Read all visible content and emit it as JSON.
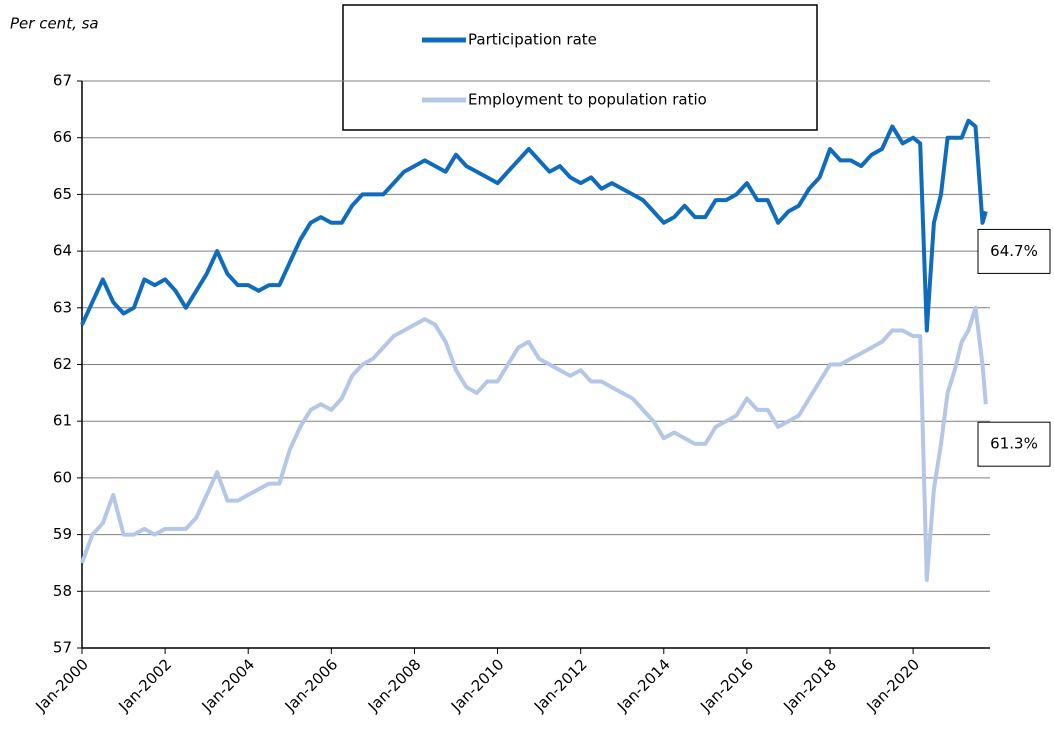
{
  "chart_data": {
    "type": "line",
    "y_label": "Per cent, sa",
    "x": [
      2000,
      2000.25,
      2000.5,
      2000.75,
      2001,
      2001.25,
      2001.5,
      2001.75,
      2002,
      2002.25,
      2002.5,
      2002.75,
      2003,
      2003.25,
      2003.5,
      2003.75,
      2004,
      2004.25,
      2004.5,
      2004.75,
      2005,
      2005.25,
      2005.5,
      2005.75,
      2006,
      2006.25,
      2006.5,
      2006.75,
      2007,
      2007.25,
      2007.5,
      2007.75,
      2008,
      2008.25,
      2008.5,
      2008.75,
      2009,
      2009.25,
      2009.5,
      2009.75,
      2010,
      2010.25,
      2010.5,
      2010.75,
      2011,
      2011.25,
      2011.5,
      2011.75,
      2012,
      2012.25,
      2012.5,
      2012.75,
      2013,
      2013.25,
      2013.5,
      2013.75,
      2014,
      2014.25,
      2014.5,
      2014.75,
      2015,
      2015.25,
      2015.5,
      2015.75,
      2016,
      2016.25,
      2016.5,
      2016.75,
      2017,
      2017.25,
      2017.5,
      2017.75,
      2018,
      2018.25,
      2018.5,
      2018.75,
      2019,
      2019.25,
      2019.5,
      2019.75,
      2020,
      2020.17,
      2020.33,
      2020.5,
      2020.67,
      2020.83,
      2021,
      2021.17,
      2021.33,
      2021.5,
      2021.67,
      2021.75
    ],
    "series": [
      {
        "name": "Participation rate",
        "color": "#0f6cbd",
        "values": [
          62.7,
          63.1,
          63.5,
          63.1,
          62.9,
          63.0,
          63.5,
          63.4,
          63.5,
          63.3,
          63.0,
          63.3,
          63.6,
          64.0,
          63.6,
          63.4,
          63.4,
          63.3,
          63.4,
          63.4,
          63.8,
          64.2,
          64.5,
          64.6,
          64.5,
          64.5,
          64.8,
          65.0,
          65.0,
          65.0,
          65.2,
          65.4,
          65.5,
          65.6,
          65.5,
          65.4,
          65.7,
          65.5,
          65.4,
          65.3,
          65.2,
          65.4,
          65.6,
          65.8,
          65.6,
          65.4,
          65.5,
          65.3,
          65.2,
          65.3,
          65.1,
          65.2,
          65.1,
          65.0,
          64.9,
          64.7,
          64.5,
          64.6,
          64.8,
          64.6,
          64.6,
          64.9,
          64.9,
          65.0,
          65.2,
          64.9,
          64.9,
          64.5,
          64.7,
          64.8,
          65.1,
          65.3,
          65.8,
          65.6,
          65.6,
          65.5,
          65.7,
          65.8,
          66.2,
          65.9,
          66.0,
          65.9,
          62.6,
          64.5,
          65.0,
          66.0,
          66.0,
          66.0,
          66.3,
          66.2,
          64.5,
          64.7
        ]
      },
      {
        "name": "Employment to population ratio",
        "color": "#b4c7e7",
        "values": [
          58.5,
          59.0,
          59.2,
          59.7,
          59.0,
          59.0,
          59.1,
          59.0,
          59.1,
          59.1,
          59.1,
          59.3,
          59.7,
          60.1,
          59.6,
          59.6,
          59.7,
          59.8,
          59.9,
          59.9,
          60.5,
          60.9,
          61.2,
          61.3,
          61.2,
          61.4,
          61.8,
          62.0,
          62.1,
          62.3,
          62.5,
          62.6,
          62.7,
          62.8,
          62.7,
          62.4,
          61.9,
          61.6,
          61.5,
          61.7,
          61.7,
          62.0,
          62.3,
          62.4,
          62.1,
          62.0,
          61.9,
          61.8,
          61.9,
          61.7,
          61.7,
          61.6,
          61.5,
          61.4,
          61.2,
          61.0,
          60.7,
          60.8,
          60.7,
          60.6,
          60.6,
          60.9,
          61.0,
          61.1,
          61.4,
          61.2,
          61.2,
          60.9,
          61.0,
          61.1,
          61.4,
          61.7,
          62.0,
          62.0,
          62.1,
          62.2,
          62.3,
          62.4,
          62.6,
          62.6,
          62.5,
          62.5,
          58.2,
          59.8,
          60.6,
          61.5,
          61.9,
          62.4,
          62.6,
          63.0,
          62.0,
          61.3
        ]
      }
    ],
    "xlim": [
      2000,
      2021.85
    ],
    "xticks": [
      {
        "value": 2000,
        "label": "Jan-2000"
      },
      {
        "value": 2002,
        "label": "Jan-2002"
      },
      {
        "value": 2004,
        "label": "Jan-2004"
      },
      {
        "value": 2006,
        "label": "Jan-2006"
      },
      {
        "value": 2008,
        "label": "Jan-2008"
      },
      {
        "value": 2010,
        "label": "Jan-2010"
      },
      {
        "value": 2012,
        "label": "Jan-2012"
      },
      {
        "value": 2014,
        "label": "Jan-2014"
      },
      {
        "value": 2016,
        "label": "Jan-2016"
      },
      {
        "value": 2018,
        "label": "Jan-2018"
      },
      {
        "value": 2020,
        "label": "Jan-2020"
      }
    ],
    "ylim": [
      57,
      67
    ],
    "yticks": [
      57,
      58,
      59,
      60,
      61,
      62,
      63,
      64,
      65,
      66,
      67
    ],
    "grid": true,
    "annotations": [
      {
        "label": "64.7%",
        "value": 64.7
      },
      {
        "label": "61.3%",
        "value": 61.3
      }
    ]
  }
}
